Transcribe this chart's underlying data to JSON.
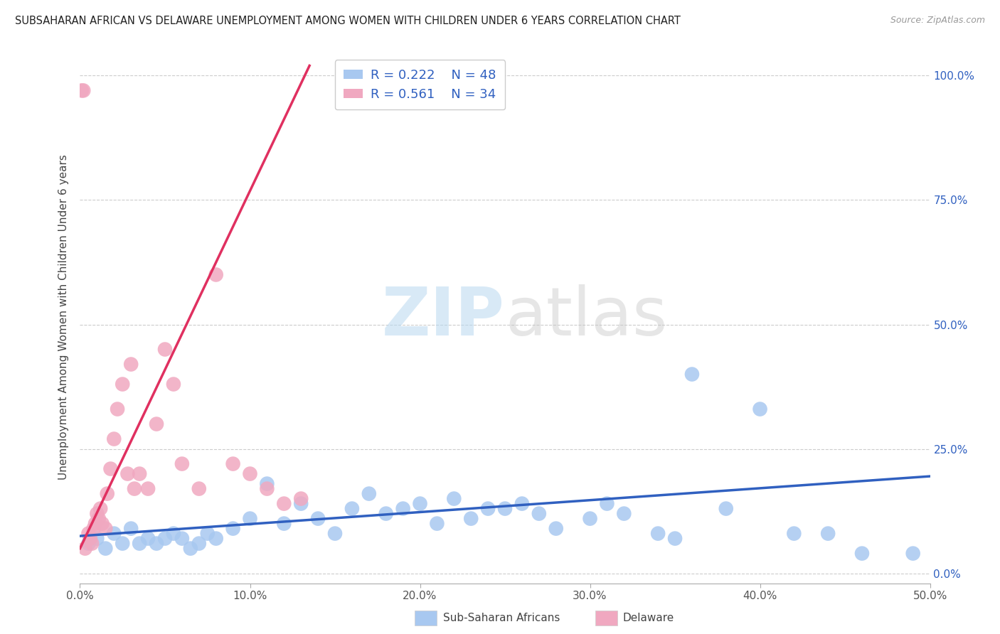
{
  "title": "SUBSAHARAN AFRICAN VS DELAWARE UNEMPLOYMENT AMONG WOMEN WITH CHILDREN UNDER 6 YEARS CORRELATION CHART",
  "source": "Source: ZipAtlas.com",
  "ylabel": "Unemployment Among Women with Children Under 6 years",
  "xlim": [
    0.0,
    0.5
  ],
  "ylim": [
    -0.02,
    1.05
  ],
  "xticks": [
    0.0,
    0.1,
    0.2,
    0.3,
    0.4,
    0.5
  ],
  "yticks": [
    0.0,
    0.25,
    0.5,
    0.75,
    1.0
  ],
  "xticklabels": [
    "0.0%",
    "10.0%",
    "20.0%",
    "30.0%",
    "40.0%",
    "50.0%"
  ],
  "yticklabels_right": [
    "0.0%",
    "25.0%",
    "50.0%",
    "75.0%",
    "100.0%"
  ],
  "legend_blue_r": "R = 0.222",
  "legend_blue_n": "N = 48",
  "legend_pink_r": "R = 0.561",
  "legend_pink_n": "N = 34",
  "blue_color": "#a8c8f0",
  "pink_color": "#f0a8c0",
  "blue_line_color": "#3060c0",
  "pink_line_color": "#e03060",
  "watermark_zip": "ZIP",
  "watermark_atlas": "atlas",
  "blue_scatter_x": [
    0.005,
    0.01,
    0.015,
    0.02,
    0.025,
    0.03,
    0.035,
    0.04,
    0.045,
    0.05,
    0.055,
    0.06,
    0.065,
    0.07,
    0.075,
    0.08,
    0.09,
    0.1,
    0.11,
    0.12,
    0.13,
    0.14,
    0.15,
    0.16,
    0.17,
    0.18,
    0.19,
    0.2,
    0.21,
    0.22,
    0.23,
    0.24,
    0.25,
    0.26,
    0.27,
    0.28,
    0.3,
    0.31,
    0.32,
    0.34,
    0.35,
    0.36,
    0.38,
    0.4,
    0.42,
    0.44,
    0.46,
    0.49
  ],
  "blue_scatter_y": [
    0.06,
    0.07,
    0.05,
    0.08,
    0.06,
    0.09,
    0.06,
    0.07,
    0.06,
    0.07,
    0.08,
    0.07,
    0.05,
    0.06,
    0.08,
    0.07,
    0.09,
    0.11,
    0.18,
    0.1,
    0.14,
    0.11,
    0.08,
    0.13,
    0.16,
    0.12,
    0.13,
    0.14,
    0.1,
    0.15,
    0.11,
    0.13,
    0.13,
    0.14,
    0.12,
    0.09,
    0.11,
    0.14,
    0.12,
    0.08,
    0.07,
    0.4,
    0.13,
    0.33,
    0.08,
    0.08,
    0.04,
    0.04
  ],
  "pink_scatter_x": [
    0.001,
    0.002,
    0.003,
    0.005,
    0.006,
    0.007,
    0.008,
    0.009,
    0.01,
    0.011,
    0.012,
    0.013,
    0.015,
    0.016,
    0.018,
    0.02,
    0.022,
    0.025,
    0.028,
    0.03,
    0.032,
    0.035,
    0.04,
    0.045,
    0.05,
    0.055,
    0.06,
    0.07,
    0.08,
    0.09,
    0.1,
    0.11,
    0.12,
    0.13
  ],
  "pink_scatter_y": [
    0.97,
    0.97,
    0.05,
    0.08,
    0.07,
    0.06,
    0.09,
    0.1,
    0.12,
    0.11,
    0.13,
    0.1,
    0.09,
    0.16,
    0.21,
    0.27,
    0.33,
    0.38,
    0.2,
    0.42,
    0.17,
    0.2,
    0.17,
    0.3,
    0.45,
    0.38,
    0.22,
    0.17,
    0.6,
    0.22,
    0.2,
    0.17,
    0.14,
    0.15
  ],
  "pink_line_x0": 0.0,
  "pink_line_y0": 0.05,
  "pink_line_x1": 0.135,
  "pink_line_y1": 1.02,
  "blue_line_x0": 0.0,
  "blue_line_y0": 0.075,
  "blue_line_x1": 0.5,
  "blue_line_y1": 0.195
}
